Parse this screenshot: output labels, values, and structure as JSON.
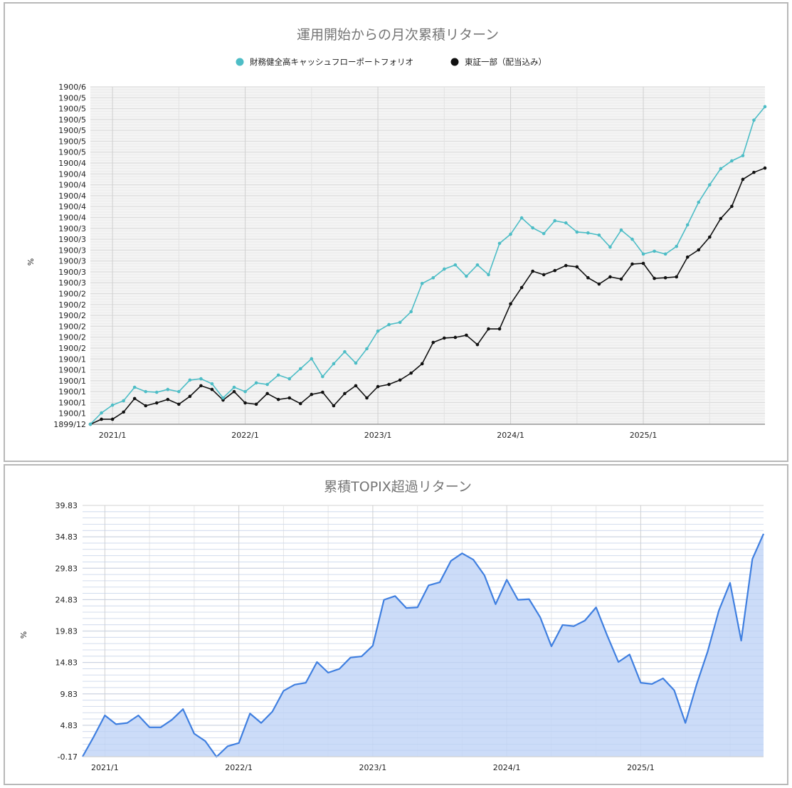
{
  "chart_data": [
    {
      "type": "line",
      "title": "運用開始からの月次累積リターン",
      "xlabel": "",
      "ylabel": "%",
      "legend_position": "top",
      "grid": true,
      "x_tick_labels": [
        "2021/1",
        "2022/1",
        "2023/1",
        "2024/1",
        "2025/1"
      ],
      "y_tick_labels": [
        "1899/12",
        "1900/1",
        "1900/1",
        "1900/1",
        "1900/1",
        "1900/1",
        "1900/1",
        "1900/2",
        "1900/2",
        "1900/2",
        "1900/2",
        "1900/2",
        "1900/2",
        "1900/3",
        "1900/3",
        "1900/3",
        "1900/3",
        "1900/3",
        "1900/3",
        "1900/4",
        "1900/4",
        "1900/4",
        "1900/4",
        "1900/4",
        "1900/4",
        "1900/5",
        "1900/5",
        "1900/5",
        "1900/5",
        "1900/5",
        "1900/5",
        "1900/6"
      ],
      "ylim": [
        0,
        155
      ],
      "x_start": "2020/11",
      "x_end": "2025/12",
      "series": [
        {
          "name": "財務健全高キャッシュフローポートフォリオ",
          "color": "#4dbdc6",
          "values": [
            0,
            5.2,
            8.8,
            10.8,
            17.0,
            15.0,
            14.7,
            16.0,
            15.0,
            20.3,
            20.9,
            18.6,
            12.1,
            17.0,
            15.0,
            19.0,
            18.3,
            22.6,
            20.9,
            25.5,
            30.1,
            21.9,
            27.8,
            33.3,
            28.1,
            34.7,
            42.8,
            45.8,
            46.8,
            51.7,
            64.7,
            67.3,
            71.3,
            73.2,
            68.0,
            73.2,
            68.7,
            83.1,
            87.3,
            94.8,
            90.2,
            87.6,
            93.5,
            92.5,
            88.3,
            87.9,
            86.9,
            81.4,
            89.2,
            85.0,
            78.2,
            79.5,
            78.2,
            81.7,
            91.6,
            102.0,
            110.0,
            117.4,
            121.0,
            123.4,
            139.7,
            145.9
          ]
        },
        {
          "name": "東証一部（配当込み）",
          "color": "#111111",
          "values": [
            0,
            2.3,
            2.3,
            5.6,
            11.8,
            8.5,
            9.8,
            11.4,
            9.2,
            12.8,
            17.7,
            16.0,
            11.1,
            15.0,
            9.8,
            9.2,
            14.1,
            11.4,
            12.1,
            9.5,
            13.7,
            14.7,
            8.5,
            14.1,
            17.7,
            12.1,
            17.3,
            18.3,
            20.3,
            23.5,
            27.8,
            37.6,
            39.6,
            39.9,
            40.9,
            36.6,
            43.8,
            43.8,
            55.3,
            62.8,
            70.3,
            68.7,
            70.6,
            72.9,
            72.3,
            67.3,
            64.4,
            67.7,
            66.7,
            73.6,
            73.9,
            67.0,
            67.3,
            67.7,
            76.8,
            80.1,
            86.0,
            94.5,
            100.1,
            112.5,
            115.7,
            117.7
          ]
        }
      ]
    },
    {
      "type": "area",
      "title": "累積TOPIX超過リターン",
      "xlabel": "",
      "ylabel": "%",
      "grid": true,
      "x_tick_labels": [
        "2021/1",
        "2022/1",
        "2023/1",
        "2024/1",
        "2025/1"
      ],
      "y_tick_labels": [
        "-0.17",
        "4.83",
        "9.83",
        "14.83",
        "19.83",
        "24.83",
        "29.83",
        "34.83",
        "39.83"
      ],
      "ylim": [
        -0.17,
        39.83
      ],
      "x_start": "2020/11",
      "x_end": "2025/12",
      "series": [
        {
          "name": "累積TOPIX超過リターン",
          "color": "#3f7fe0",
          "fill": "#c3d6f7",
          "values": [
            -0.17,
            3.0,
            6.4,
            5.0,
            5.2,
            6.4,
            4.5,
            4.5,
            5.7,
            7.4,
            3.5,
            2.3,
            -0.2,
            1.5,
            2.0,
            6.7,
            5.2,
            7.0,
            10.3,
            11.3,
            11.6,
            14.9,
            13.2,
            13.8,
            15.6,
            15.8,
            17.5,
            24.8,
            25.4,
            23.5,
            23.6,
            27.1,
            27.6,
            31.0,
            32.2,
            31.2,
            28.7,
            24.1,
            28.0,
            24.8,
            24.9,
            22.0,
            17.4,
            20.8,
            20.6,
            21.5,
            23.6,
            19.1,
            14.9,
            16.1,
            11.6,
            11.4,
            12.3,
            10.4,
            5.2,
            11.3,
            16.6,
            23.1,
            27.5,
            18.3,
            31.3,
            35.3
          ]
        }
      ]
    }
  ]
}
